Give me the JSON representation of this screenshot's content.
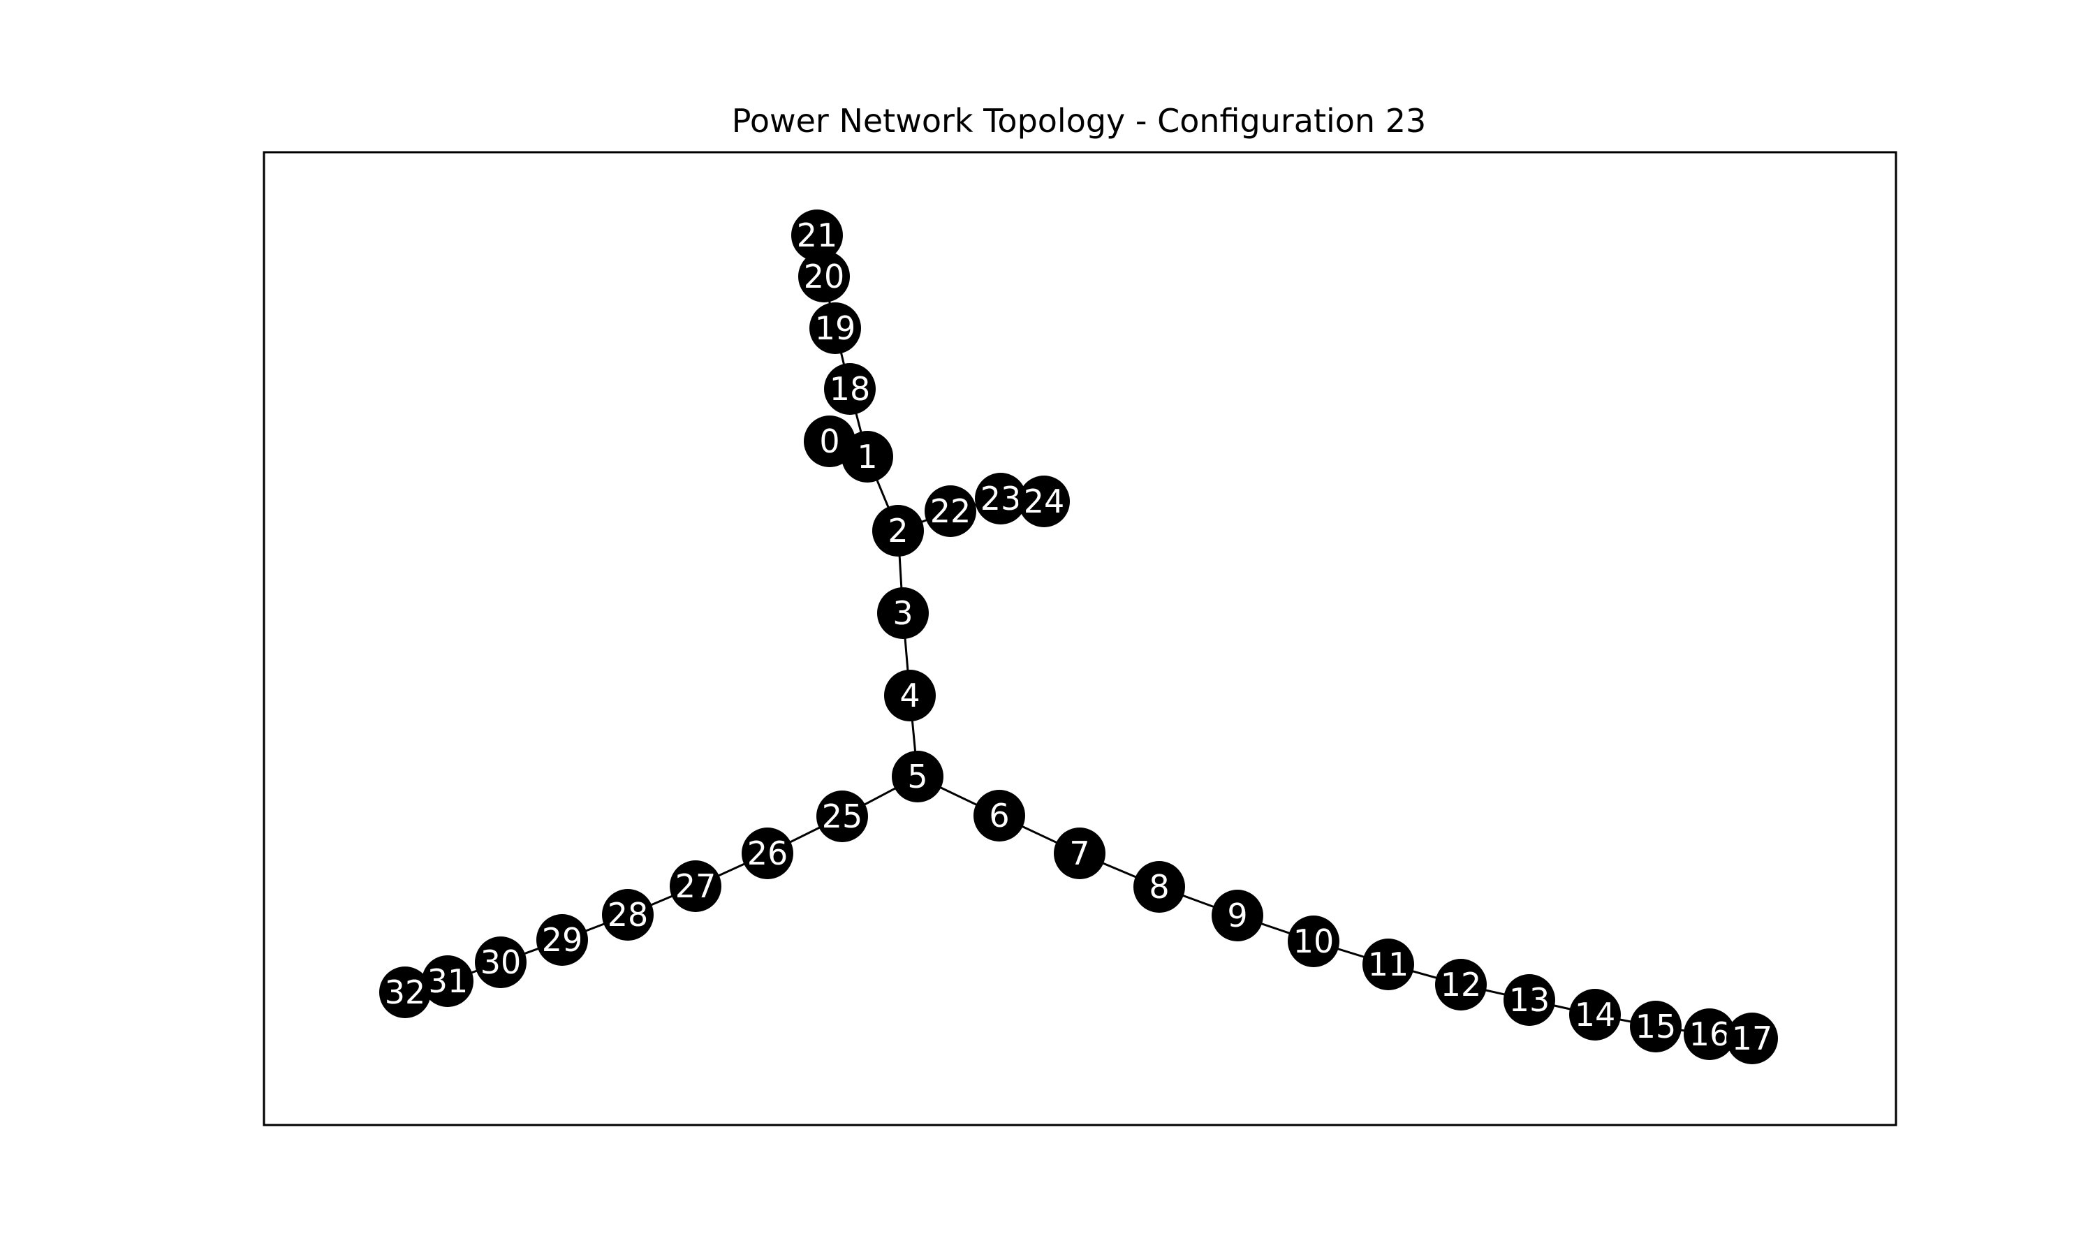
{
  "title": "Power Network Topology - Configuration 23",
  "colors": {
    "node_fill": "#000000",
    "node_label": "#ffffff",
    "edge": "#000000",
    "frame": "#000000",
    "background": "#ffffff"
  },
  "network": {
    "nodes": [
      "0",
      "1",
      "2",
      "3",
      "4",
      "5",
      "6",
      "7",
      "8",
      "9",
      "10",
      "11",
      "12",
      "13",
      "14",
      "15",
      "16",
      "17",
      "18",
      "19",
      "20",
      "21",
      "22",
      "23",
      "24",
      "25",
      "26",
      "27",
      "28",
      "29",
      "30",
      "31",
      "32"
    ],
    "edges": [
      [
        "0",
        "1"
      ],
      [
        "1",
        "2"
      ],
      [
        "2",
        "3"
      ],
      [
        "3",
        "4"
      ],
      [
        "4",
        "5"
      ],
      [
        "5",
        "6"
      ],
      [
        "6",
        "7"
      ],
      [
        "7",
        "8"
      ],
      [
        "8",
        "9"
      ],
      [
        "9",
        "10"
      ],
      [
        "10",
        "11"
      ],
      [
        "11",
        "12"
      ],
      [
        "12",
        "13"
      ],
      [
        "13",
        "14"
      ],
      [
        "14",
        "15"
      ],
      [
        "15",
        "16"
      ],
      [
        "16",
        "17"
      ],
      [
        "1",
        "18"
      ],
      [
        "18",
        "19"
      ],
      [
        "19",
        "20"
      ],
      [
        "20",
        "21"
      ],
      [
        "2",
        "22"
      ],
      [
        "22",
        "23"
      ],
      [
        "23",
        "24"
      ],
      [
        "5",
        "25"
      ],
      [
        "25",
        "26"
      ],
      [
        "26",
        "27"
      ],
      [
        "27",
        "28"
      ],
      [
        "28",
        "29"
      ],
      [
        "29",
        "30"
      ],
      [
        "30",
        "31"
      ],
      [
        "31",
        "32"
      ]
    ]
  }
}
